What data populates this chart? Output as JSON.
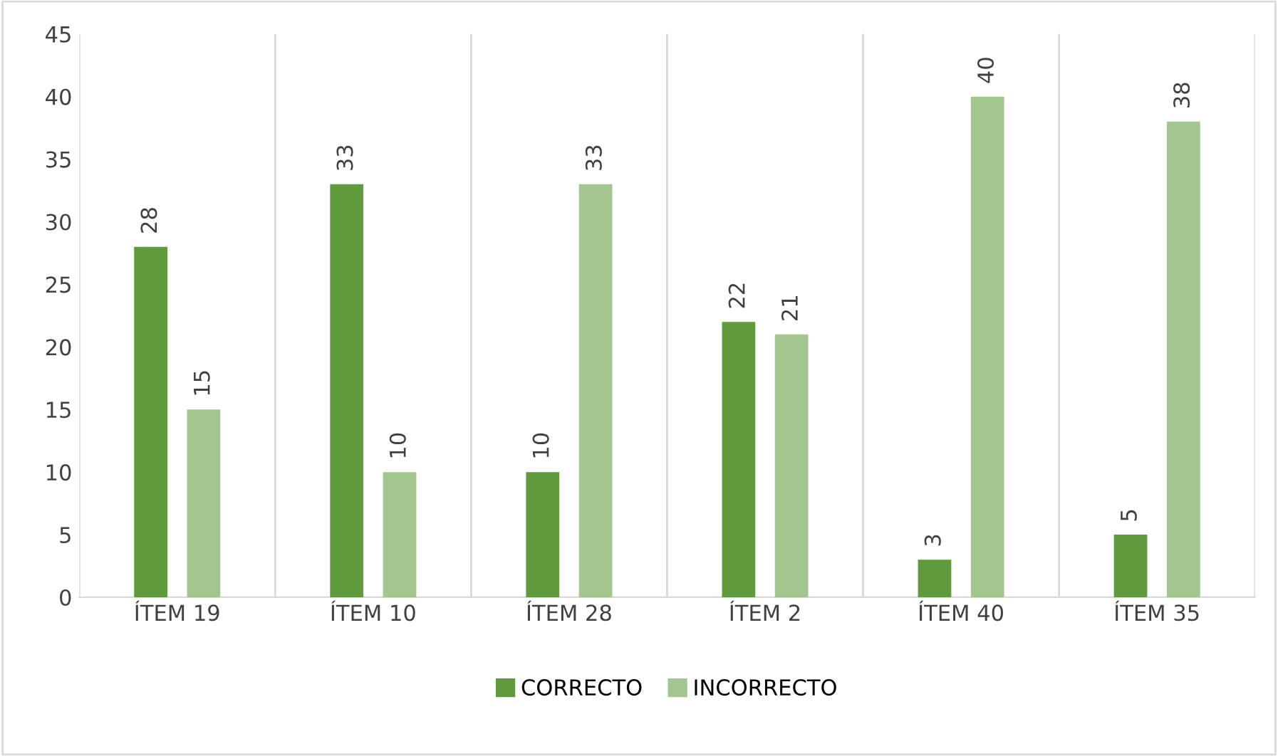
{
  "chart_data": {
    "type": "bar",
    "categories": [
      "ÍTEM 19",
      "ÍTEM 10",
      "ÍTEM 28",
      "ÍTEM 2",
      "ÍTEM 40",
      "ÍTEM 35"
    ],
    "series": [
      {
        "name": "CORRECTO",
        "color": "#5f9b3d",
        "values": [
          28,
          33,
          10,
          22,
          3,
          5
        ]
      },
      {
        "name": "INCORRECTO",
        "color": "#a3c68f",
        "values": [
          15,
          10,
          33,
          21,
          40,
          38
        ]
      }
    ],
    "ylim": [
      0,
      45
    ],
    "yticks": [
      0,
      5,
      10,
      15,
      20,
      25,
      30,
      35,
      40,
      45
    ],
    "grid": "x",
    "legend": "bottom",
    "data_labels": true
  }
}
